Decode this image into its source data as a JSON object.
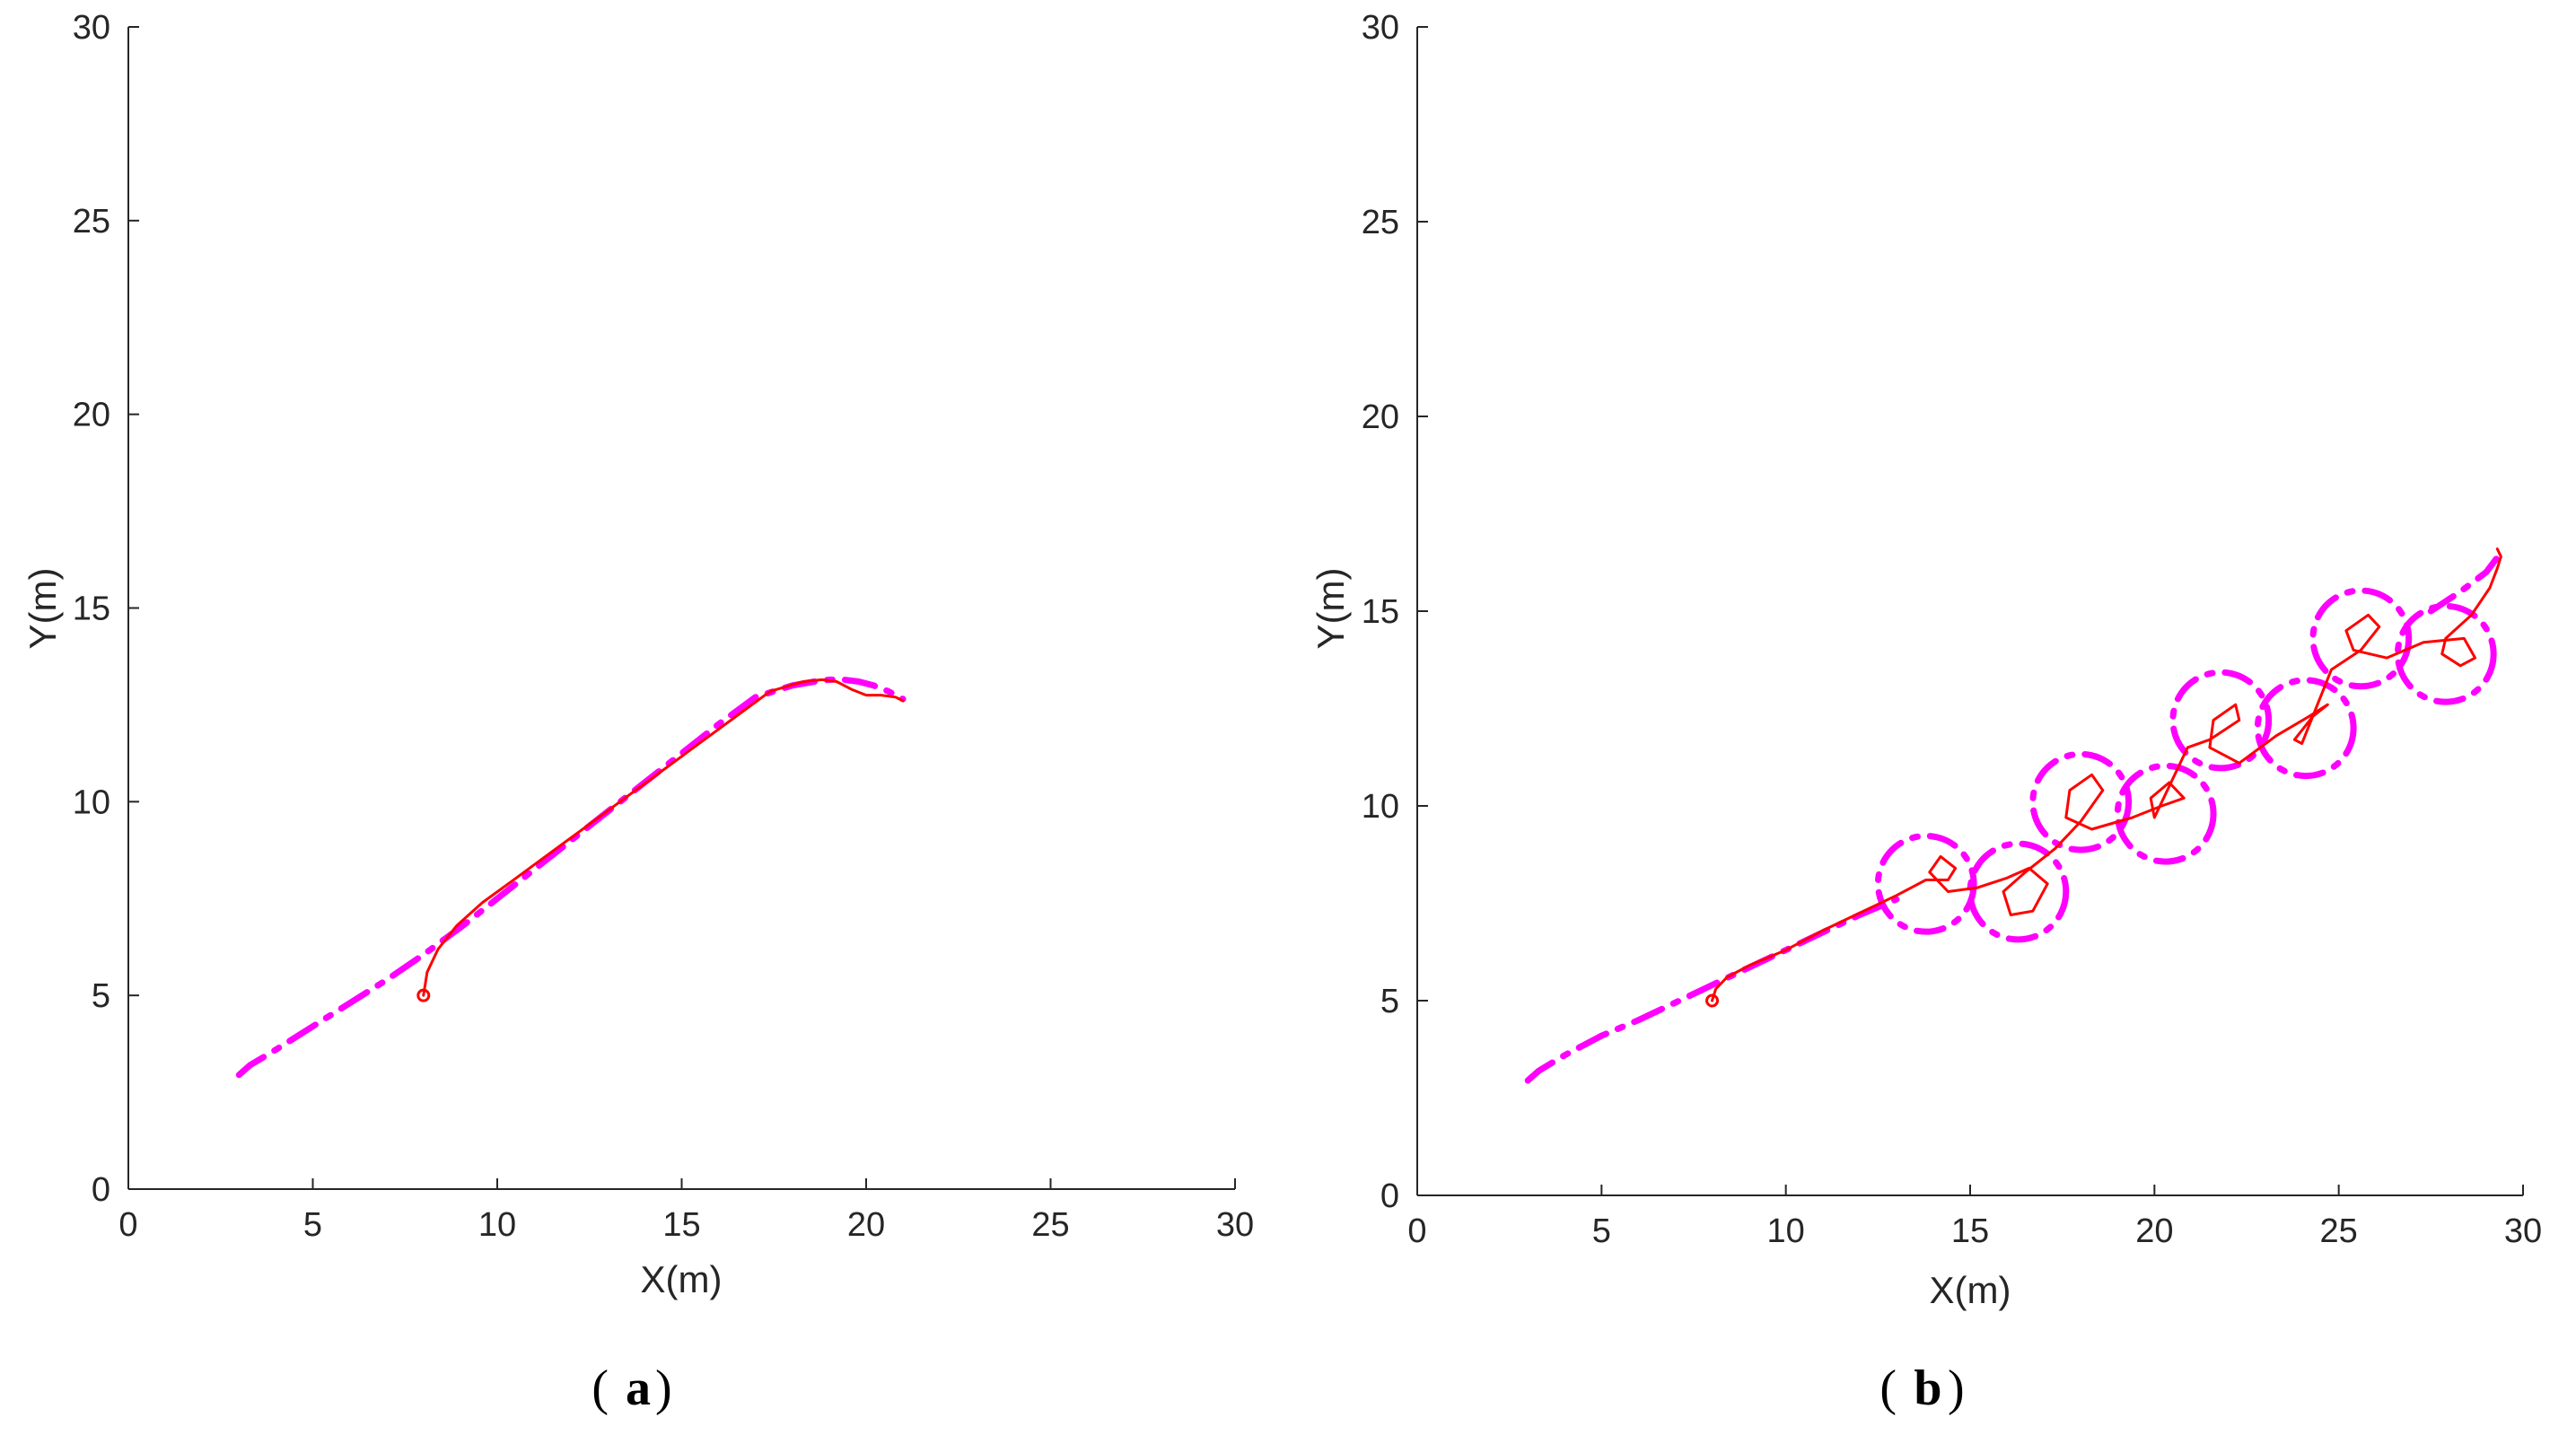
{
  "figure": {
    "panel_a_caption": "a",
    "panel_b_caption": "b"
  },
  "colors": {
    "reference_path": "#ff00ff",
    "robot_path": "#ff0000",
    "axes": "#262626"
  },
  "chart_data": [
    {
      "type": "line",
      "panel": "a",
      "xlabel": "X(m)",
      "ylabel": "Y(m)",
      "xlim": [
        0,
        30
      ],
      "ylim": [
        0,
        30
      ],
      "xticks": [
        0,
        5,
        10,
        15,
        20,
        25,
        30
      ],
      "yticks": [
        0,
        5,
        10,
        15,
        20,
        25,
        30
      ],
      "grid": false,
      "series": [
        {
          "style": "dash-dot",
          "color": "#ff00ff",
          "x": [
            3.0,
            3.3,
            4.0,
            5.0,
            6.0,
            7.0,
            8.0,
            9.0,
            10.0,
            11.0,
            12.0,
            13.0,
            14.0,
            15.0,
            16.0,
            17.0,
            18.0,
            18.6,
            19.0,
            19.4,
            19.8,
            20.2,
            20.6,
            21.0
          ],
          "y": [
            2.95,
            3.2,
            3.6,
            4.2,
            4.8,
            5.4,
            6.05,
            6.75,
            7.5,
            8.25,
            9.0,
            9.75,
            10.5,
            11.25,
            12.0,
            12.7,
            13.0,
            13.1,
            13.15,
            13.15,
            13.1,
            13.0,
            12.85,
            12.65
          ]
        },
        {
          "style": "solid",
          "color": "#ff0000",
          "start_marker": [
            8.0,
            5.0
          ],
          "x": [
            8.0,
            8.1,
            8.4,
            8.9,
            9.6,
            10.4,
            11.4,
            12.4,
            13.4,
            14.4,
            15.4,
            16.4,
            17.4,
            18.3,
            18.8,
            19.2,
            19.6,
            20.0,
            20.4,
            20.8,
            21.0
          ],
          "y": [
            5.0,
            5.6,
            6.2,
            6.8,
            7.4,
            7.95,
            8.65,
            9.35,
            10.05,
            10.75,
            11.45,
            12.15,
            12.85,
            13.1,
            13.15,
            13.1,
            12.9,
            12.75,
            12.75,
            12.7,
            12.6
          ]
        }
      ]
    },
    {
      "type": "line",
      "panel": "b",
      "xlabel": "X(m)",
      "ylabel": "Y(m)",
      "xlim": [
        0,
        30
      ],
      "ylim": [
        0,
        30
      ],
      "xticks": [
        0,
        5,
        10,
        15,
        20,
        25,
        30
      ],
      "yticks": [
        0,
        5,
        10,
        15,
        20,
        25,
        30
      ],
      "grid": false,
      "series": [
        {
          "style": "dash-dot",
          "color": "#ff00ff",
          "x": [
            3.0,
            3.3,
            4.0,
            5.0,
            6.0,
            7.0,
            8.0,
            9.0,
            10.0,
            11.0,
            12.0,
            13.0
          ],
          "y": [
            2.95,
            3.2,
            3.6,
            4.1,
            4.5,
            4.95,
            5.4,
            5.85,
            6.3,
            6.75,
            7.2,
            7.6
          ],
          "circles": [
            {
              "cx": 13.8,
              "cy": 8.0,
              "r": 1.3
            },
            {
              "cx": 16.3,
              "cy": 7.8,
              "r": 1.3
            },
            {
              "cx": 18.0,
              "cy": 10.1,
              "r": 1.3
            },
            {
              "cx": 20.3,
              "cy": 9.8,
              "r": 1.3
            },
            {
              "cx": 21.8,
              "cy": 12.2,
              "r": 1.3
            },
            {
              "cx": 24.1,
              "cy": 12.0,
              "r": 1.3
            },
            {
              "cx": 25.6,
              "cy": 14.3,
              "r": 1.3
            },
            {
              "cx": 27.9,
              "cy": 13.9,
              "r": 1.3
            }
          ],
          "end_x": [
            27.5,
            28.3,
            29.0,
            29.4
          ],
          "end_y": [
            15.0,
            15.5,
            16.0,
            16.5
          ]
        },
        {
          "style": "solid",
          "color": "#ff0000",
          "start_marker": [
            8.0,
            5.0
          ],
          "x": [
            8.0,
            8.1,
            8.4,
            9.0,
            10.0,
            11.0,
            12.0,
            13.0,
            13.8,
            14.4,
            14.6,
            14.2,
            13.9,
            14.4,
            15.2,
            16.0,
            16.6,
            17.1,
            16.7,
            16.1,
            15.9,
            16.5,
            17.3,
            18.0,
            18.6,
            18.3,
            17.7,
            17.6,
            18.3,
            19.4,
            20.2,
            20.8,
            20.4,
            19.9,
            20.0,
            20.9,
            21.5,
            22.3,
            22.2,
            21.6,
            21.5,
            22.3,
            23.3,
            24.2,
            24.7,
            24.3,
            23.8,
            24.0,
            24.8,
            25.6,
            26.1,
            25.8,
            25.2,
            25.4,
            26.3,
            27.3,
            28.4,
            28.7,
            28.3,
            27.8,
            27.9,
            28.6,
            29.1,
            29.3,
            29.4,
            29.3
          ],
          "y": [
            5.0,
            5.3,
            5.6,
            5.9,
            6.3,
            6.8,
            7.25,
            7.7,
            8.1,
            8.1,
            8.4,
            8.7,
            8.3,
            7.8,
            7.9,
            8.15,
            8.4,
            8.0,
            7.3,
            7.2,
            7.8,
            8.3,
            8.9,
            9.6,
            10.4,
            10.8,
            10.4,
            9.7,
            9.4,
            9.7,
            10.0,
            10.2,
            10.6,
            10.2,
            9.7,
            11.5,
            11.7,
            12.2,
            12.6,
            12.2,
            11.5,
            11.1,
            11.8,
            12.3,
            12.6,
            12.3,
            11.7,
            11.6,
            13.5,
            14.0,
            14.6,
            14.9,
            14.5,
            14.0,
            13.8,
            14.2,
            14.3,
            13.8,
            13.6,
            13.9,
            14.3,
            14.9,
            15.6,
            16.1,
            16.4,
            16.6
          ]
        }
      ]
    }
  ]
}
